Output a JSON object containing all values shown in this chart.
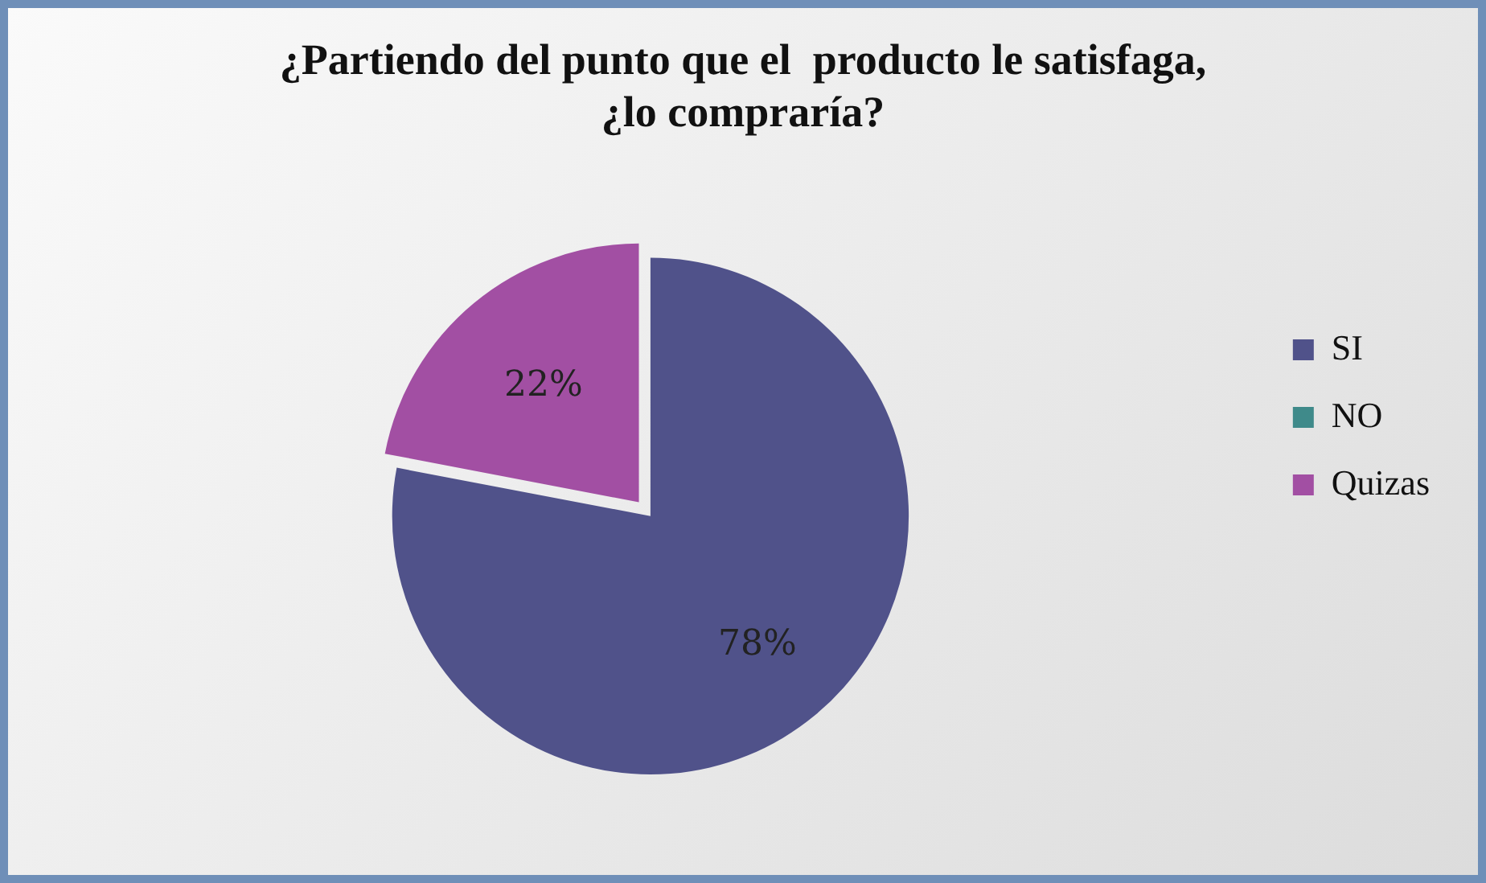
{
  "chart_data": {
    "type": "pie",
    "title": "¿Partiendo del punto que el  producto le satisfaga, ¿lo compraría?",
    "categories": [
      "SI",
      "NO",
      "Quizas"
    ],
    "values": [
      78,
      0,
      22
    ],
    "colors": [
      "#50528a",
      "#3f8a8a",
      "#a24fa3"
    ],
    "value_labels": [
      "78%",
      null,
      "22%"
    ],
    "legend": "right"
  }
}
